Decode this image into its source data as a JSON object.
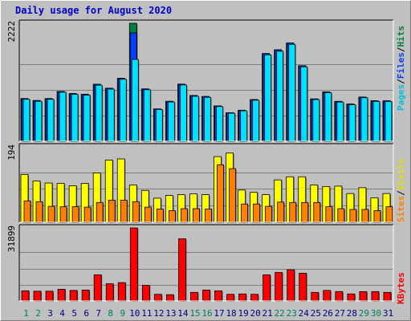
{
  "chart_data": {
    "type": "bar",
    "title": "Daily usage for August 2020",
    "x": [
      "1",
      "2",
      "3",
      "4",
      "5",
      "6",
      "7",
      "8",
      "9",
      "10",
      "11",
      "12",
      "13",
      "14",
      "15",
      "16",
      "17",
      "18",
      "19",
      "20",
      "21",
      "22",
      "23",
      "24",
      "25",
      "26",
      "27",
      "28",
      "29",
      "30",
      "31"
    ],
    "weekend_days": [
      "1",
      "2",
      "8",
      "9",
      "15",
      "16",
      "22",
      "23",
      "29",
      "30"
    ],
    "panels": [
      {
        "id": "top",
        "ymax_label": "2222",
        "ymax": 2222,
        "right_label": {
          "pages": "Pages",
          "files": "Files",
          "hits": "Hits"
        },
        "series": [
          {
            "name": "Hits",
            "color": "#008040",
            "values": [
              804,
              767,
              804,
              939,
              898,
              884,
              1073,
              999,
              1185,
              2222,
              986,
              608,
              752,
              1076,
              861,
              843,
              665,
              537,
              584,
              785,
              1652,
              1722,
              1851,
              1423,
              797,
              929,
              751,
              700,
              833,
              762,
              761
            ]
          },
          {
            "name": "Files",
            "color": "#0040ff",
            "values": [
              804,
              767,
              804,
              939,
              898,
              884,
              1073,
              999,
              1185,
              2041,
              986,
              608,
              752,
              1076,
              861,
              843,
              665,
              537,
              584,
              785,
              1652,
              1722,
              1851,
              1423,
              797,
              929,
              751,
              700,
              833,
              762,
              761
            ]
          },
          {
            "name": "Pages",
            "color": "#00e0ff",
            "values": [
              790,
              752,
              790,
              924,
              883,
              869,
              1056,
              983,
              1168,
              1541,
              970,
              598,
              740,
              1060,
              847,
              828,
              654,
              528,
              574,
              773,
              1628,
              1696,
              1826,
              1403,
              785,
              914,
              738,
              688,
              820,
              750,
              749
            ]
          }
        ]
      },
      {
        "id": "mid",
        "ymax_label": "194",
        "ymax": 194,
        "right_label": {
          "sites": "Sites",
          "visits": "Visits"
        },
        "series": [
          {
            "name": "Visits",
            "color": "#ffff00",
            "values": [
              123,
              106,
              101,
              100,
              94,
              100,
              127,
              160,
              163,
              96,
              82,
              62,
              69,
              71,
              73,
              71,
              169,
              178,
              83,
              77,
              71,
              109,
              117,
              117,
              96,
              92,
              93,
              74,
              89,
              63,
              74
            ]
          },
          {
            "name": "Sites",
            "color": "#ff8000",
            "values": [
              55,
              53,
              41,
              40,
              40,
              39,
              51,
              57,
              57,
              53,
              39,
              34,
              30,
              35,
              35,
              34,
              148,
              138,
              47,
              47,
              41,
              52,
              51,
              51,
              51,
              40,
              35,
              33,
              33,
              30,
              40
            ]
          }
        ]
      },
      {
        "id": "bot",
        "ymax_label": "31899",
        "ymax": 31899,
        "right_label": {
          "kbytes": "KBytes"
        },
        "series": [
          {
            "name": "KBytes",
            "color": "#ff0000",
            "values": [
              4427,
              4256,
              4256,
              5108,
              4597,
              4767,
              11409,
              7494,
              8004,
              31899,
              6812,
              2896,
              2725,
              27130,
              3747,
              4767,
              4427,
              2896,
              3066,
              2896,
              11409,
              12431,
              13624,
              12091,
              3747,
              4597,
              4087,
              3066,
              4087,
              4087,
              3747
            ]
          }
        ]
      }
    ],
    "colors": {
      "background": "#c0c0c0",
      "plot_background": "#c0c0c0",
      "gridline": "#808080",
      "title": "#0000cc",
      "weekday_label": "#000080",
      "weekend_label": "#00805c"
    }
  }
}
